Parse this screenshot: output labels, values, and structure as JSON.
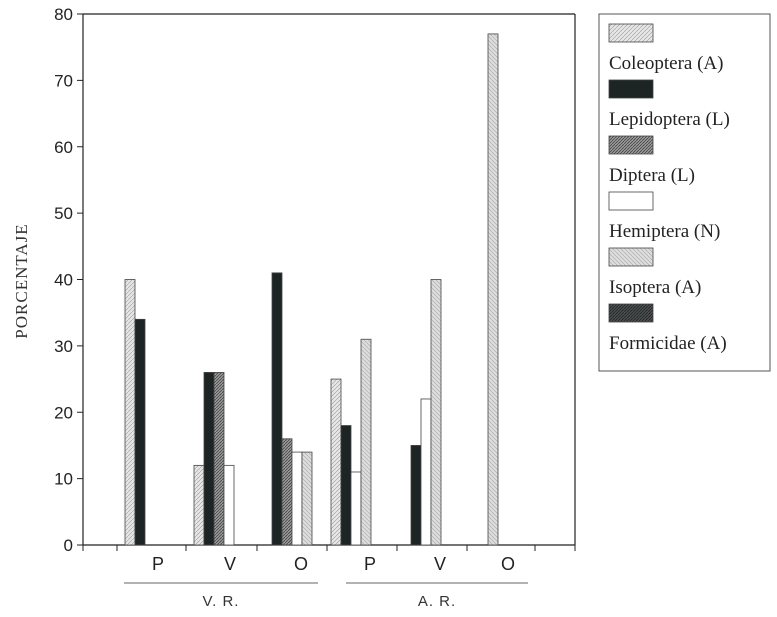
{
  "chart_data": {
    "type": "bar",
    "ylabel": "PORCENTAJE",
    "ylim": [
      0,
      80
    ],
    "yticks": [
      0,
      10,
      20,
      30,
      40,
      50,
      60,
      70,
      80
    ],
    "groups": [
      {
        "label": "V. R.",
        "categories": [
          "P",
          "V",
          "O"
        ]
      },
      {
        "label": "A. R.",
        "categories": [
          "P",
          "V",
          "O"
        ]
      }
    ],
    "categories": [
      "P",
      "V",
      "O",
      "P",
      "V",
      "O"
    ],
    "series": [
      {
        "name": "Coleoptera (A)",
        "color": "#dcdcdc",
        "values": [
          40,
          12,
          0,
          25,
          0,
          0
        ]
      },
      {
        "name": "Lepidoptera (L)",
        "color": "#1f2a2a",
        "values": [
          34,
          26,
          41,
          18,
          15,
          0
        ]
      },
      {
        "name": "Diptera (L)",
        "color": "#8a8a8a",
        "values": [
          0,
          26,
          16,
          0,
          0,
          0
        ]
      },
      {
        "name": "Hemiptera (N)",
        "color": "#ffffff",
        "values": [
          0,
          12,
          14,
          11,
          22,
          0
        ]
      },
      {
        "name": "Isoptera (A)",
        "color": "#d2d2d2",
        "values": [
          0,
          0,
          14,
          31,
          40,
          77
        ]
      },
      {
        "name": "Formicidae (A)",
        "color": "#3f4545",
        "values": [
          0,
          0,
          0,
          0,
          0,
          0
        ]
      }
    ],
    "legend_position": "right",
    "grid": false
  }
}
